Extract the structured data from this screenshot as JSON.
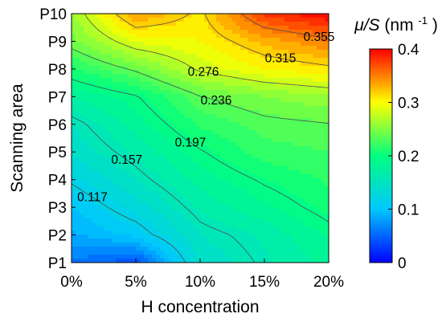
{
  "chart_data": {
    "type": "heatmap",
    "style": "filled-contour",
    "xlabel": "H concentration",
    "ylabel": "Scanning area",
    "x_categories": [
      "0%",
      "5%",
      "10%",
      "15%",
      "20%"
    ],
    "y_categories": [
      "P1",
      "P2",
      "P3",
      "P4",
      "P5",
      "P6",
      "P7",
      "P8",
      "P9",
      "P10"
    ],
    "values": [
      [
        0.06,
        0.04,
        0.14,
        0.16,
        0.18
      ],
      [
        0.085,
        0.105,
        0.15,
        0.165,
        0.19
      ],
      [
        0.1,
        0.13,
        0.165,
        0.185,
        0.205
      ],
      [
        0.12,
        0.15,
        0.18,
        0.2,
        0.215
      ],
      [
        0.14,
        0.165,
        0.195,
        0.22,
        0.225
      ],
      [
        0.15,
        0.18,
        0.215,
        0.23,
        0.235
      ],
      [
        0.175,
        0.195,
        0.235,
        0.25,
        0.26
      ],
      [
        0.21,
        0.24,
        0.28,
        0.3,
        0.31
      ],
      [
        0.245,
        0.29,
        0.3,
        0.33,
        0.35
      ],
      [
        0.26,
        0.34,
        0.31,
        0.38,
        0.4
      ]
    ],
    "contour_levels": [
      "0.117",
      "0.157",
      "0.197",
      "0.236",
      "0.276",
      "0.315",
      "0.355"
    ],
    "colorbar": {
      "title_symbol": "μ/S",
      "title_unit": "(nm",
      "title_exp": "-1",
      "title_close": ")",
      "range": [
        0,
        0.4
      ],
      "tick_values": [
        0,
        0.1,
        0.2,
        0.3,
        0.4
      ],
      "tick_labels": [
        "0",
        "0.1",
        "0.2",
        "0.3",
        "0.4"
      ]
    },
    "colormap": [
      "#0000ff",
      "#00c8ff",
      "#00ff7f",
      "#ffff00",
      "#ff0000"
    ]
  }
}
